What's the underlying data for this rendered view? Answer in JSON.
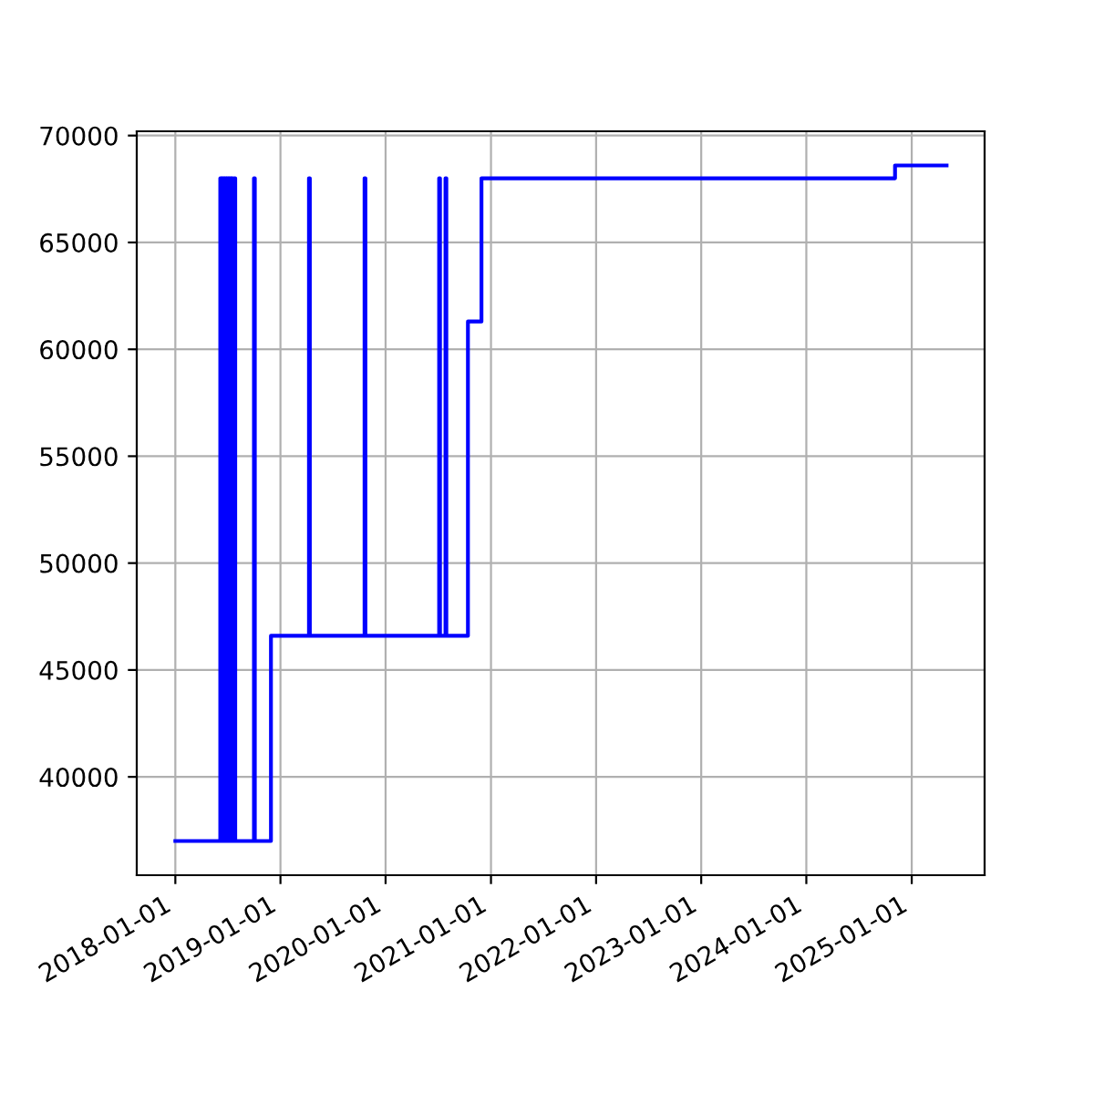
{
  "chart_data": {
    "type": "step",
    "x": [
      "2018-01-01",
      "2018-06-06",
      "2018-06-10",
      "2018-06-14",
      "2018-06-18",
      "2018-06-22",
      "2018-06-26",
      "2018-06-30",
      "2018-07-04",
      "2018-07-08",
      "2018-07-12",
      "2018-07-16",
      "2018-07-20",
      "2018-07-24",
      "2018-07-28",
      "2018-10-01",
      "2018-10-04",
      "2018-11-29",
      "2019-04-10",
      "2019-04-13",
      "2019-10-20",
      "2019-10-23",
      "2020-07-05",
      "2020-07-08",
      "2020-07-27",
      "2020-07-30",
      "2020-10-13",
      "2020-11-29",
      "2024-11-04",
      "2025-05-02"
    ],
    "series": [
      {
        "color": "#0000ff",
        "values": [
          37000,
          68000,
          37000,
          68000,
          37000,
          68000,
          37000,
          68000,
          37000,
          68000,
          37000,
          68000,
          37000,
          68000,
          37000,
          68000,
          37000,
          46600,
          68000,
          46600,
          68000,
          46600,
          68000,
          46600,
          68000,
          46600,
          61300,
          68000,
          68600,
          68600
        ]
      }
    ],
    "xlim": [
      "2017-08-20",
      "2025-09-11"
    ],
    "xticks": [
      "2018-01-01",
      "2019-01-01",
      "2020-01-01",
      "2021-01-01",
      "2022-01-01",
      "2023-01-01",
      "2024-01-01",
      "2025-01-01"
    ],
    "ylim": [
      35400,
      70200
    ],
    "yticks": [
      40000,
      45000,
      50000,
      55000,
      60000,
      65000,
      70000
    ],
    "grid": true,
    "marker": "none",
    "line_style": "solid"
  }
}
